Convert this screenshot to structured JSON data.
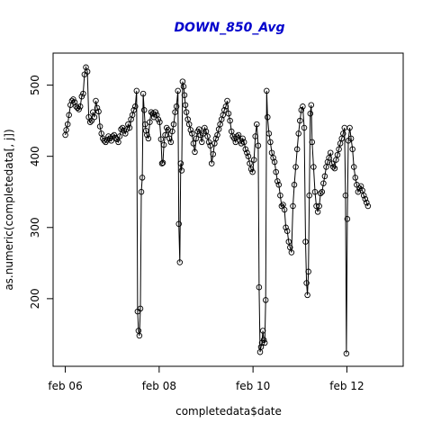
{
  "chart_data": {
    "type": "line",
    "title": "DOWN_850_Avg",
    "title_color": "#0000cc",
    "xlabel": "completedata$date",
    "ylabel": "as.numeric(completedata[, j])",
    "x_ticks": [
      {
        "label": "feb 06",
        "value": 0
      },
      {
        "label": "feb 08",
        "value": 2
      },
      {
        "label": "feb 10",
        "value": 4
      },
      {
        "label": "feb 12",
        "value": 6
      }
    ],
    "y_ticks": [
      200,
      300,
      400,
      500
    ],
    "xlim": [
      -0.26,
      7.2
    ],
    "ylim": [
      105,
      545
    ],
    "grid": false,
    "markers": "open-circle",
    "points": [
      [
        0.0,
        430
      ],
      [
        0.02,
        437
      ],
      [
        0.05,
        445
      ],
      [
        0.08,
        458
      ],
      [
        0.11,
        472
      ],
      [
        0.14,
        478
      ],
      [
        0.17,
        480
      ],
      [
        0.2,
        476
      ],
      [
        0.23,
        470
      ],
      [
        0.26,
        468
      ],
      [
        0.29,
        466
      ],
      [
        0.32,
        470
      ],
      [
        0.35,
        484
      ],
      [
        0.38,
        488
      ],
      [
        0.41,
        515
      ],
      [
        0.44,
        525
      ],
      [
        0.47,
        519
      ],
      [
        0.5,
        455
      ],
      [
        0.53,
        448
      ],
      [
        0.56,
        450
      ],
      [
        0.59,
        462
      ],
      [
        0.62,
        455
      ],
      [
        0.65,
        478
      ],
      [
        0.68,
        468
      ],
      [
        0.71,
        463
      ],
      [
        0.74,
        442
      ],
      [
        0.77,
        432
      ],
      [
        0.8,
        425
      ],
      [
        0.83,
        422
      ],
      [
        0.86,
        420
      ],
      [
        0.89,
        423
      ],
      [
        0.92,
        428
      ],
      [
        0.95,
        425
      ],
      [
        0.98,
        422
      ],
      [
        1.01,
        428
      ],
      [
        1.04,
        430
      ],
      [
        1.07,
        426
      ],
      [
        1.1,
        424
      ],
      [
        1.13,
        420
      ],
      [
        1.16,
        428
      ],
      [
        1.19,
        438
      ],
      [
        1.22,
        440
      ],
      [
        1.25,
        436
      ],
      [
        1.28,
        432
      ],
      [
        1.31,
        438
      ],
      [
        1.34,
        445
      ],
      [
        1.37,
        440
      ],
      [
        1.4,
        452
      ],
      [
        1.43,
        458
      ],
      [
        1.46,
        465
      ],
      [
        1.49,
        470
      ],
      [
        1.52,
        492
      ],
      [
        1.54,
        182
      ],
      [
        1.56,
        155
      ],
      [
        1.58,
        148
      ],
      [
        1.6,
        186
      ],
      [
        1.62,
        350
      ],
      [
        1.64,
        370
      ],
      [
        1.66,
        488
      ],
      [
        1.68,
        465
      ],
      [
        1.7,
        445
      ],
      [
        1.72,
        436
      ],
      [
        1.74,
        430
      ],
      [
        1.77,
        425
      ],
      [
        1.8,
        448
      ],
      [
        1.83,
        462
      ],
      [
        1.86,
        460
      ],
      [
        1.89,
        455
      ],
      [
        1.92,
        462
      ],
      [
        1.95,
        458
      ],
      [
        1.98,
        452
      ],
      [
        2.01,
        448
      ],
      [
        2.04,
        424
      ],
      [
        2.06,
        390
      ],
      [
        2.08,
        391
      ],
      [
        2.1,
        416
      ],
      [
        2.13,
        430
      ],
      [
        2.16,
        440
      ],
      [
        2.19,
        437
      ],
      [
        2.22,
        425
      ],
      [
        2.25,
        420
      ],
      [
        2.28,
        435
      ],
      [
        2.31,
        445
      ],
      [
        2.34,
        462
      ],
      [
        2.37,
        470
      ],
      [
        2.4,
        492
      ],
      [
        2.42,
        305
      ],
      [
        2.44,
        251
      ],
      [
        2.46,
        390
      ],
      [
        2.48,
        380
      ],
      [
        2.5,
        505
      ],
      [
        2.52,
        498
      ],
      [
        2.54,
        486
      ],
      [
        2.56,
        472
      ],
      [
        2.58,
        462
      ],
      [
        2.61,
        452
      ],
      [
        2.64,
        445
      ],
      [
        2.67,
        437
      ],
      [
        2.7,
        432
      ],
      [
        2.73,
        418
      ],
      [
        2.76,
        406
      ],
      [
        2.79,
        425
      ],
      [
        2.82,
        435
      ],
      [
        2.85,
        438
      ],
      [
        2.88,
        430
      ],
      [
        2.91,
        420
      ],
      [
        2.94,
        432
      ],
      [
        2.97,
        440
      ],
      [
        3.0,
        435
      ],
      [
        3.03,
        428
      ],
      [
        3.06,
        420
      ],
      [
        3.09,
        415
      ],
      [
        3.12,
        390
      ],
      [
        3.15,
        403
      ],
      [
        3.18,
        418
      ],
      [
        3.21,
        425
      ],
      [
        3.24,
        430
      ],
      [
        3.27,
        438
      ],
      [
        3.3,
        445
      ],
      [
        3.33,
        452
      ],
      [
        3.36,
        458
      ],
      [
        3.39,
        465
      ],
      [
        3.42,
        470
      ],
      [
        3.45,
        478
      ],
      [
        3.48,
        460
      ],
      [
        3.51,
        450
      ],
      [
        3.54,
        435
      ],
      [
        3.57,
        428
      ],
      [
        3.6,
        425
      ],
      [
        3.63,
        420
      ],
      [
        3.66,
        428
      ],
      [
        3.69,
        430
      ],
      [
        3.72,
        422
      ],
      [
        3.75,
        418
      ],
      [
        3.78,
        425
      ],
      [
        3.81,
        420
      ],
      [
        3.84,
        410
      ],
      [
        3.87,
        405
      ],
      [
        3.9,
        400
      ],
      [
        3.93,
        390
      ],
      [
        3.96,
        382
      ],
      [
        3.99,
        378
      ],
      [
        4.02,
        395
      ],
      [
        4.05,
        428
      ],
      [
        4.08,
        445
      ],
      [
        4.11,
        415
      ],
      [
        4.13,
        216
      ],
      [
        4.15,
        125
      ],
      [
        4.17,
        132
      ],
      [
        4.19,
        138
      ],
      [
        4.21,
        155
      ],
      [
        4.23,
        142
      ],
      [
        4.25,
        138
      ],
      [
        4.27,
        198
      ],
      [
        4.29,
        492
      ],
      [
        4.31,
        455
      ],
      [
        4.34,
        432
      ],
      [
        4.37,
        420
      ],
      [
        4.4,
        405
      ],
      [
        4.43,
        398
      ],
      [
        4.46,
        392
      ],
      [
        4.49,
        378
      ],
      [
        4.52,
        365
      ],
      [
        4.55,
        360
      ],
      [
        4.58,
        345
      ],
      [
        4.61,
        330
      ],
      [
        4.64,
        332
      ],
      [
        4.67,
        325
      ],
      [
        4.7,
        300
      ],
      [
        4.73,
        295
      ],
      [
        4.76,
        280
      ],
      [
        4.79,
        272
      ],
      [
        4.82,
        265
      ],
      [
        4.85,
        330
      ],
      [
        4.88,
        360
      ],
      [
        4.91,
        385
      ],
      [
        4.94,
        410
      ],
      [
        4.97,
        432
      ],
      [
        5.0,
        450
      ],
      [
        5.03,
        465
      ],
      [
        5.06,
        470
      ],
      [
        5.09,
        440
      ],
      [
        5.12,
        280
      ],
      [
        5.14,
        222
      ],
      [
        5.16,
        205
      ],
      [
        5.18,
        238
      ],
      [
        5.2,
        345
      ],
      [
        5.22,
        460
      ],
      [
        5.24,
        472
      ],
      [
        5.26,
        420
      ],
      [
        5.29,
        385
      ],
      [
        5.32,
        350
      ],
      [
        5.35,
        330
      ],
      [
        5.38,
        322
      ],
      [
        5.41,
        330
      ],
      [
        5.44,
        348
      ],
      [
        5.47,
        350
      ],
      [
        5.5,
        362
      ],
      [
        5.53,
        372
      ],
      [
        5.56,
        385
      ],
      [
        5.59,
        392
      ],
      [
        5.62,
        398
      ],
      [
        5.65,
        405
      ],
      [
        5.68,
        390
      ],
      [
        5.71,
        385
      ],
      [
        5.74,
        383
      ],
      [
        5.77,
        395
      ],
      [
        5.8,
        402
      ],
      [
        5.83,
        410
      ],
      [
        5.86,
        418
      ],
      [
        5.89,
        425
      ],
      [
        5.92,
        432
      ],
      [
        5.95,
        440
      ],
      [
        5.97,
        345
      ],
      [
        5.99,
        123
      ],
      [
        6.01,
        312
      ],
      [
        6.03,
        422
      ],
      [
        6.06,
        440
      ],
      [
        6.09,
        425
      ],
      [
        6.12,
        410
      ],
      [
        6.15,
        385
      ],
      [
        6.18,
        370
      ],
      [
        6.21,
        360
      ],
      [
        6.24,
        350
      ],
      [
        6.27,
        355
      ],
      [
        6.3,
        358
      ],
      [
        6.33,
        352
      ],
      [
        6.36,
        345
      ],
      [
        6.39,
        340
      ],
      [
        6.42,
        335
      ],
      [
        6.45,
        330
      ]
    ]
  }
}
